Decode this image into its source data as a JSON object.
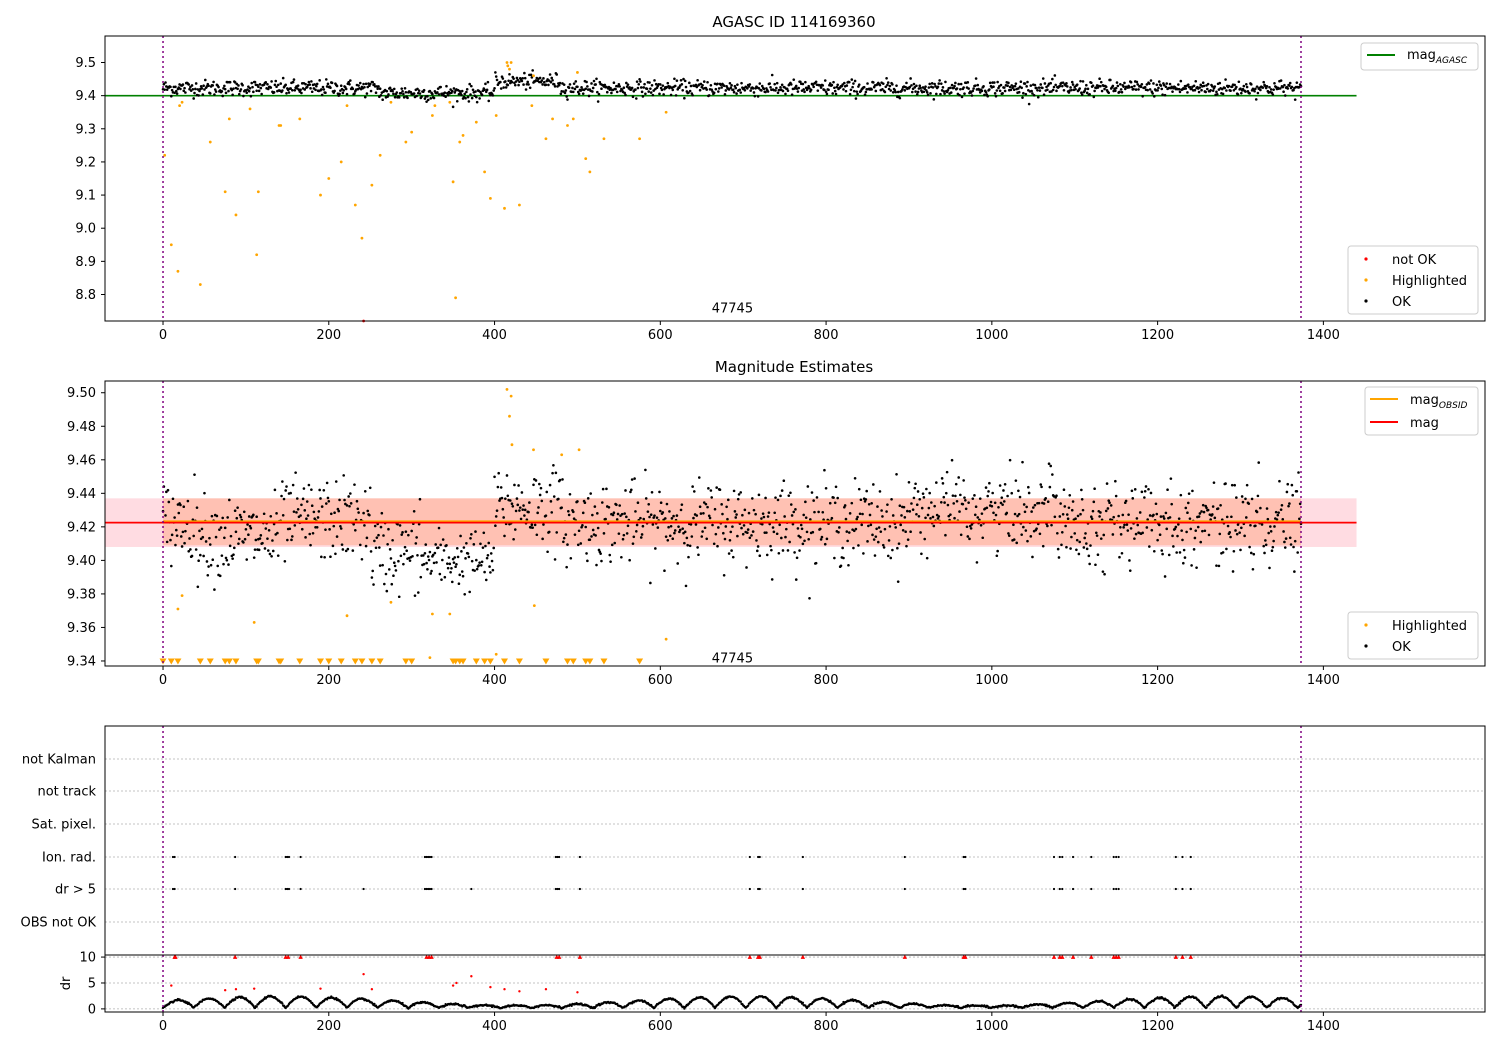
{
  "figure": {
    "panel1_title": "AGASC ID 114169360",
    "panel2_title": "Magnitude Estimates",
    "obsid_annotation": "47745"
  },
  "colors": {
    "ok": "#000000",
    "highlighted": "#ffa500",
    "not_ok": "#ff0000",
    "mag_agasc_line": "#008000",
    "mag_obsid_line": "#ffa500",
    "mag_line": "#ff0000",
    "mag_band": "#ffc0cb",
    "obsid_band": "#ffa07a",
    "obs_boundary": "#800080",
    "grid": "#b0b0b0"
  },
  "chart_data": [
    {
      "type": "scatter",
      "panel": "top",
      "title": "AGASC ID 114169360",
      "xlim": [
        -70,
        1595
      ],
      "ylim": [
        8.72,
        9.58
      ],
      "xticks": [
        0,
        200,
        400,
        600,
        800,
        1000,
        1200,
        1400
      ],
      "yticks": [
        8.8,
        8.9,
        9.0,
        9.1,
        9.2,
        9.3,
        9.4,
        9.5
      ],
      "mag_agasc": 9.4,
      "mag_agasc_xrange": [
        -70,
        1440
      ],
      "legend_lines": [
        {
          "name": "mag",
          "subscript": "AGASC",
          "color": "#008000"
        }
      ],
      "legend_markers": [
        {
          "name": "not OK",
          "color": "#ff0000"
        },
        {
          "name": "Highlighted",
          "color": "#ffa500"
        },
        {
          "name": "OK",
          "color": "#000000"
        }
      ],
      "obs_boundaries": [
        0,
        1373
      ],
      "obsid_label": {
        "text": "47745",
        "x": 687,
        "y": 8.76
      },
      "ok_series": {
        "x_range": [
          0,
          1373
        ],
        "n": 1373,
        "baseline": 9.423,
        "scatter": 0.012,
        "dip_regions": [
          [
            260,
            400,
            -0.015
          ]
        ],
        "bump_regions": [
          [
            400,
            480,
            0.02
          ]
        ]
      },
      "highlighted_points": [
        [
          2,
          9.22
        ],
        [
          10,
          8.95
        ],
        [
          18,
          8.87
        ],
        [
          20,
          9.37
        ],
        [
          23,
          9.38
        ],
        [
          45,
          8.83
        ],
        [
          57,
          9.26
        ],
        [
          75,
          9.11
        ],
        [
          80,
          9.33
        ],
        [
          88,
          9.04
        ],
        [
          105,
          9.36
        ],
        [
          113,
          8.92
        ],
        [
          115,
          9.11
        ],
        [
          140,
          9.31
        ],
        [
          142,
          9.31
        ],
        [
          165,
          9.33
        ],
        [
          190,
          9.1
        ],
        [
          200,
          9.15
        ],
        [
          215,
          9.2
        ],
        [
          222,
          9.37
        ],
        [
          232,
          9.07
        ],
        [
          240,
          8.97
        ],
        [
          252,
          9.13
        ],
        [
          262,
          9.22
        ],
        [
          275,
          9.38
        ],
        [
          293,
          9.26
        ],
        [
          300,
          9.29
        ],
        [
          325,
          9.34
        ],
        [
          328,
          9.37
        ],
        [
          346,
          9.38
        ],
        [
          350,
          9.14
        ],
        [
          353,
          8.79
        ],
        [
          358,
          9.26
        ],
        [
          362,
          9.28
        ],
        [
          378,
          9.32
        ],
        [
          388,
          9.17
        ],
        [
          395,
          9.09
        ],
        [
          402,
          9.34
        ],
        [
          412,
          9.06
        ],
        [
          415,
          9.5
        ],
        [
          416,
          9.49
        ],
        [
          418,
          9.48
        ],
        [
          420,
          9.5
        ],
        [
          430,
          9.07
        ],
        [
          445,
          9.37
        ],
        [
          447,
          9.46
        ],
        [
          462,
          9.27
        ],
        [
          470,
          9.33
        ],
        [
          488,
          9.31
        ],
        [
          495,
          9.33
        ],
        [
          500,
          9.47
        ],
        [
          510,
          9.21
        ],
        [
          515,
          9.17
        ],
        [
          532,
          9.27
        ],
        [
          575,
          9.27
        ],
        [
          607,
          9.35
        ]
      ],
      "not_ok_points": [
        [
          242,
          8.72
        ]
      ]
    },
    {
      "type": "scatter",
      "panel": "middle",
      "title": "Magnitude Estimates",
      "xlim": [
        -70,
        1595
      ],
      "ylim": [
        9.337,
        9.507
      ],
      "xticks": [
        0,
        200,
        400,
        600,
        800,
        1000,
        1200,
        1400
      ],
      "yticks": [
        9.34,
        9.36,
        9.38,
        9.4,
        9.42,
        9.44,
        9.46,
        9.48,
        9.5
      ],
      "mag": 9.4225,
      "mag_band": [
        9.408,
        9.437
      ],
      "mag_band_xrange": [
        -70,
        1440
      ],
      "mag_obsid": 9.4232,
      "mag_obsid_band": [
        9.409,
        9.437
      ],
      "mag_obsid_xrange": [
        0,
        1373
      ],
      "legend_lines": [
        {
          "name": "mag",
          "subscript": "OBSID",
          "color": "#ffa500"
        },
        {
          "name": "mag",
          "subscript": "",
          "color": "#ff0000"
        }
      ],
      "legend_markers": [
        {
          "name": "Highlighted",
          "color": "#ffa500"
        },
        {
          "name": "OK",
          "color": "#000000"
        }
      ],
      "obs_boundaries": [
        0,
        1373
      ],
      "obsid_label": {
        "text": "47745",
        "x": 687,
        "y": 9.342
      },
      "highlighted_points": [
        [
          18,
          9.371
        ],
        [
          23,
          9.379
        ],
        [
          110,
          9.363
        ],
        [
          222,
          9.367
        ],
        [
          275,
          9.375
        ],
        [
          322,
          9.342
        ],
        [
          325,
          9.368
        ],
        [
          346,
          9.368
        ],
        [
          402,
          9.344
        ],
        [
          415,
          9.502
        ],
        [
          418,
          9.486
        ],
        [
          420,
          9.498
        ],
        [
          421,
          9.469
        ],
        [
          447,
          9.466
        ],
        [
          448,
          9.373
        ],
        [
          481,
          9.463
        ],
        [
          502,
          9.466
        ],
        [
          607,
          9.353
        ]
      ],
      "below_axis_markers_x": [
        0,
        10,
        18,
        45,
        57,
        75,
        80,
        88,
        113,
        115,
        140,
        142,
        165,
        190,
        200,
        215,
        232,
        240,
        252,
        262,
        293,
        300,
        350,
        353,
        358,
        362,
        378,
        388,
        395,
        412,
        430,
        462,
        488,
        495,
        510,
        515,
        532,
        575
      ]
    },
    {
      "type": "event_raster",
      "panel": "bottom_flags",
      "xlim": [
        -70,
        1595
      ],
      "rows": [
        "not Kalman",
        "not track",
        "Sat. pixel.",
        "Ion. rad.",
        "dr > 5",
        "OBS not OK"
      ],
      "obs_boundaries": [
        0,
        1373
      ],
      "ion_rad_x": [
        12,
        14,
        87,
        148,
        150,
        152,
        166,
        316,
        318,
        320,
        322,
        324,
        474,
        476,
        478,
        503,
        708,
        718,
        720,
        772,
        895,
        966,
        968,
        1075,
        1082,
        1085,
        1098,
        1120,
        1147,
        1150,
        1153,
        1222,
        1230,
        1240
      ],
      "dr_gt_5_x": [
        12,
        14,
        87,
        148,
        150,
        152,
        166,
        242,
        316,
        318,
        320,
        322,
        324,
        372,
        474,
        476,
        478,
        503,
        708,
        718,
        720,
        772,
        895,
        966,
        968,
        1075,
        1082,
        1085,
        1098,
        1120,
        1147,
        1150,
        1153,
        1222,
        1230,
        1240
      ]
    },
    {
      "type": "scatter",
      "panel": "bottom_dr",
      "xlim": [
        -70,
        1595
      ],
      "ylim": [
        -0.6,
        10.4
      ],
      "ylabel": "dr",
      "yticks": [
        0,
        5,
        10
      ],
      "xticks": [
        0,
        200,
        400,
        600,
        800,
        1000,
        1200,
        1400
      ],
      "obs_boundaries": [
        0,
        1373
      ],
      "ok_series": {
        "x_range": [
          0,
          1373
        ],
        "baseline": 1.2,
        "amplitude": 1.3
      },
      "red_points": [
        [
          10,
          4.5
        ],
        [
          14,
          10
        ],
        [
          15,
          10
        ],
        [
          75,
          3.6
        ],
        [
          87,
          10
        ],
        [
          88,
          3.8
        ],
        [
          110,
          3.9
        ],
        [
          148,
          10
        ],
        [
          151,
          10
        ],
        [
          166,
          10
        ],
        [
          190,
          3.9
        ],
        [
          242,
          6.7
        ],
        [
          252,
          3.8
        ],
        [
          318,
          10
        ],
        [
          321,
          10
        ],
        [
          324,
          10
        ],
        [
          350,
          4.5
        ],
        [
          354,
          5
        ],
        [
          372,
          6.3
        ],
        [
          395,
          4.2
        ],
        [
          412,
          3.8
        ],
        [
          430,
          3.4
        ],
        [
          462,
          3.8
        ],
        [
          475,
          10
        ],
        [
          478,
          10
        ],
        [
          500,
          3.2
        ],
        [
          503,
          10
        ],
        [
          708,
          10
        ],
        [
          718,
          10
        ],
        [
          720,
          10
        ],
        [
          772,
          10
        ],
        [
          895,
          10
        ],
        [
          966,
          10
        ],
        [
          968,
          10
        ],
        [
          1075,
          10
        ],
        [
          1082,
          10
        ],
        [
          1085,
          10
        ],
        [
          1098,
          10
        ],
        [
          1120,
          10
        ],
        [
          1147,
          10
        ],
        [
          1150,
          10
        ],
        [
          1153,
          10
        ],
        [
          1222,
          10
        ],
        [
          1230,
          10
        ],
        [
          1240,
          10
        ]
      ]
    }
  ]
}
